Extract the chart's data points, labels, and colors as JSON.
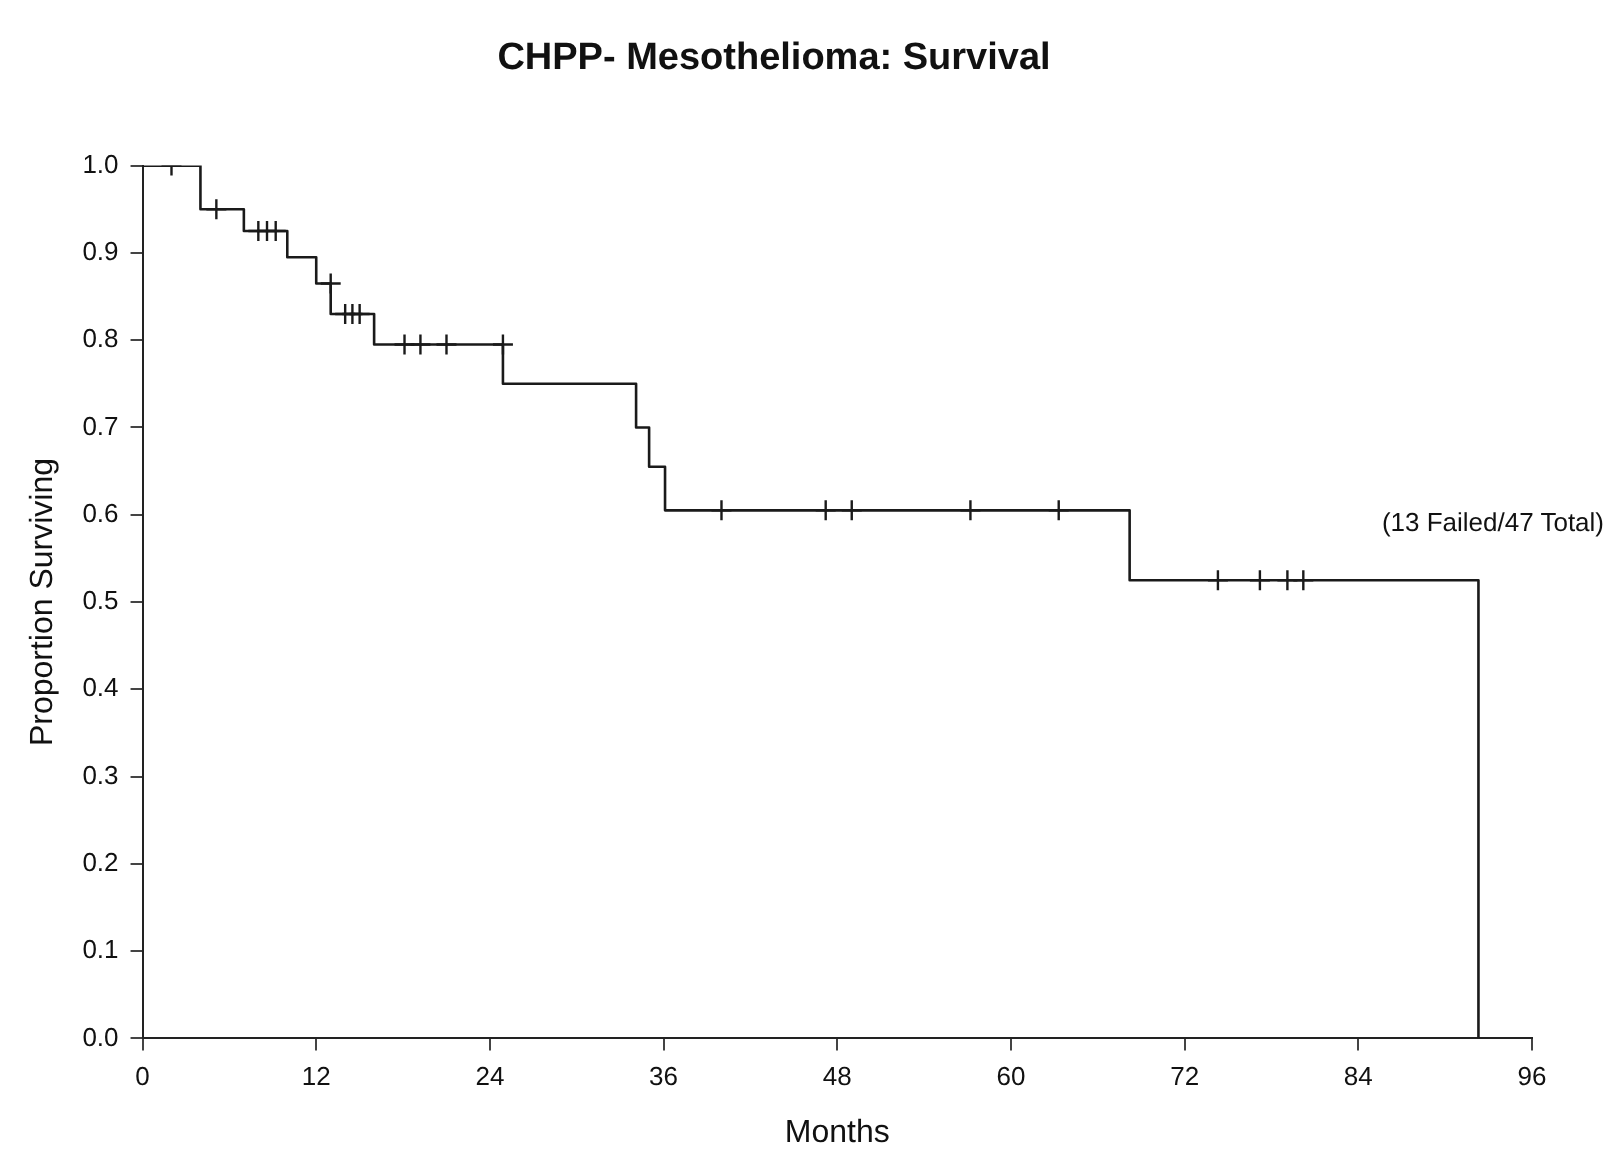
{
  "chart_data": {
    "type": "step",
    "title": "CHPP- Mesothelioma: Survival",
    "xlabel": "Months",
    "ylabel": "Proportion Surviving",
    "annotations": [
      "(13 Failed/47 Total)"
    ],
    "series": [
      {
        "color": "#1a1a1a",
        "x": [
          0,
          4,
          7,
          10,
          12,
          13,
          16,
          24.9,
          34.1,
          35,
          36.1,
          68.2,
          92.3
        ],
        "values": [
          1,
          0.95,
          0.925,
          0.895,
          0.865,
          0.83,
          0.795,
          0.75,
          0.7,
          0.655,
          0.605,
          0.525,
          0
        ]
      },
      {
        "type": "scatter",
        "color": "#1a1a1a",
        "marker": "cross",
        "x": [
          2,
          5.1,
          8,
          8.6,
          9.2,
          13,
          14,
          14.5,
          15,
          18.1,
          19.2,
          21,
          24.9,
          40,
          47.2,
          49,
          57.2,
          63.3,
          74.3,
          77.2,
          79.1,
          80.2
        ],
        "values": [
          1,
          0.95,
          0.925,
          0.925,
          0.925,
          0.865,
          0.83,
          0.83,
          0.83,
          0.795,
          0.795,
          0.795,
          0.795,
          0.605,
          0.605,
          0.605,
          0.605,
          0.605,
          0.525,
          0.525,
          0.525,
          0.525
        ]
      }
    ],
    "xlim": [
      0,
      96
    ],
    "xticks": [
      0,
      12,
      24,
      36,
      48,
      60,
      72,
      84,
      96
    ],
    "ylim": [
      0,
      1
    ],
    "yticks": [
      {
        "value": 0,
        "label": "0.0"
      },
      {
        "value": 0.1,
        "label": "0.1"
      },
      {
        "value": 0.2,
        "label": "0.2"
      },
      {
        "value": 0.3,
        "label": "0.3"
      },
      {
        "value": 0.4,
        "label": "0.4"
      },
      {
        "value": 0.5,
        "label": "0.5"
      },
      {
        "value": 0.6,
        "label": "0.6"
      },
      {
        "value": 0.7,
        "label": "0.7"
      },
      {
        "value": 0.8,
        "label": "0.8"
      },
      {
        "value": 0.9,
        "label": "0.9"
      },
      {
        "value": 1,
        "label": "1.0"
      }
    ],
    "grid": false,
    "legend": false
  }
}
